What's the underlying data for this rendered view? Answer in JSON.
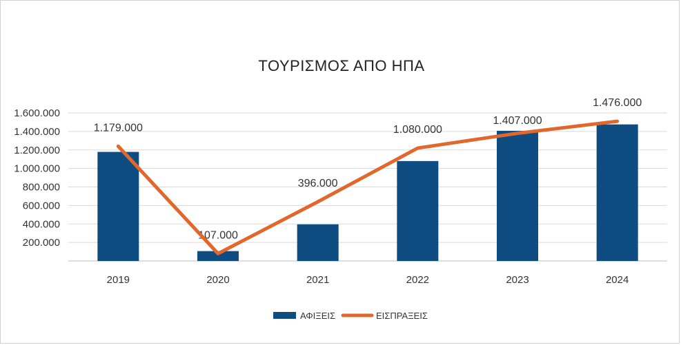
{
  "chart_data": {
    "type": "bar",
    "title": "ΤΟΥΡΙΣΜΟΣ ΑΠΟ ΗΠΑ",
    "categories": [
      "2019",
      "2020",
      "2021",
      "2022",
      "2023",
      "2024"
    ],
    "ytick_labels": [
      "200.000",
      "400.000",
      "600.000",
      "800.000",
      "1.000.000",
      "1.200.000",
      "1.400.000",
      "1.600.000"
    ],
    "ylim": [
      0,
      1600000
    ],
    "grid": true,
    "legend_position": "bottom",
    "series": [
      {
        "name": "ΑΦΙΞΕΙΣ",
        "type": "bar",
        "color": "#0f4c81",
        "values": [
          1179000,
          107000,
          396000,
          1080000,
          1407000,
          1476000
        ],
        "labels": [
          "1.179.000",
          "107.000",
          "396.000",
          "1.080.000",
          "1.407.000",
          "1.476.000"
        ]
      },
      {
        "name": "ΕΙΣΠΡΑΞΕΙΣ",
        "type": "line",
        "color": "#e2672d",
        "values": [
          1240000,
          80000,
          640000,
          1220000,
          1380000,
          1510000
        ]
      }
    ]
  }
}
